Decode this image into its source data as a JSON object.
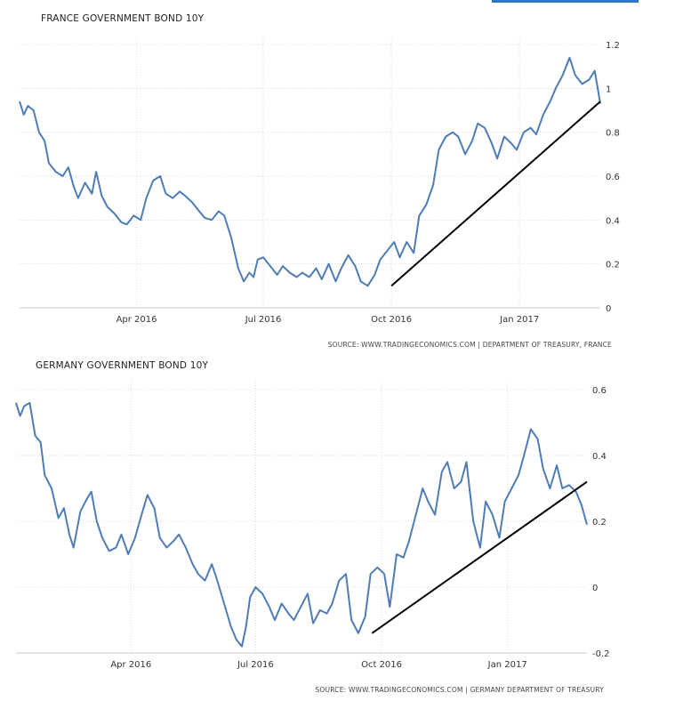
{
  "chart_data": [
    {
      "type": "line",
      "title": "FRANCE GOVERNMENT BOND 10Y",
      "source": "SOURCE: WWW.TRADINGECONOMICS.COM | DEPARTMENT OF TREASURY, FRANCE",
      "ylim": [
        0,
        1.2
      ],
      "y_ticks": [
        "1.2",
        "1",
        "0.8",
        "0.6",
        "0.4",
        "0.2",
        "0"
      ],
      "x_ticks": [
        "Apr 2016",
        "Jul 2016",
        "Oct 2016",
        "Jan 2017"
      ],
      "x_range": [
        "2016-01-08",
        "2017-02-28"
      ],
      "grid": true,
      "line_color": "#4e7cb5",
      "series": [
        {
          "x": [
            "2016-01-08",
            "2016-01-11",
            "2016-01-14",
            "2016-01-18",
            "2016-01-22",
            "2016-01-26",
            "2016-01-29",
            "2016-02-03",
            "2016-02-08",
            "2016-02-12",
            "2016-02-16",
            "2016-02-19",
            "2016-02-24",
            "2016-02-29",
            "2016-03-03",
            "2016-03-07",
            "2016-03-11",
            "2016-03-16",
            "2016-03-21",
            "2016-03-25",
            "2016-03-30",
            "2016-04-04",
            "2016-04-08",
            "2016-04-13",
            "2016-04-18",
            "2016-04-22",
            "2016-04-27",
            "2016-05-02",
            "2016-05-06",
            "2016-05-11",
            "2016-05-16",
            "2016-05-20",
            "2016-05-25",
            "2016-05-30",
            "2016-06-03",
            "2016-06-08",
            "2016-06-13",
            "2016-06-17",
            "2016-06-21",
            "2016-06-24",
            "2016-06-27",
            "2016-07-01",
            "2016-07-06",
            "2016-07-11",
            "2016-07-15",
            "2016-07-20",
            "2016-07-25",
            "2016-07-29",
            "2016-08-03",
            "2016-08-08",
            "2016-08-12",
            "2016-08-17",
            "2016-08-22",
            "2016-08-26",
            "2016-08-31",
            "2016-09-05",
            "2016-09-09",
            "2016-09-14",
            "2016-09-19",
            "2016-09-23",
            "2016-09-28",
            "2016-10-03",
            "2016-10-07",
            "2016-10-12",
            "2016-10-17",
            "2016-10-21",
            "2016-10-26",
            "2016-10-31",
            "2016-11-04",
            "2016-11-09",
            "2016-11-14",
            "2016-11-18",
            "2016-11-23",
            "2016-11-28",
            "2016-12-02",
            "2016-12-07",
            "2016-12-12",
            "2016-12-16",
            "2016-12-21",
            "2016-12-26",
            "2016-12-30",
            "2017-01-04",
            "2017-01-09",
            "2017-01-13",
            "2017-01-18",
            "2017-01-23",
            "2017-01-27",
            "2017-02-01",
            "2017-02-06",
            "2017-02-10",
            "2017-02-15",
            "2017-02-20",
            "2017-02-24",
            "2017-02-28"
          ],
          "values": [
            0.94,
            0.88,
            0.92,
            0.9,
            0.8,
            0.76,
            0.66,
            0.62,
            0.6,
            0.64,
            0.55,
            0.5,
            0.57,
            0.52,
            0.62,
            0.51,
            0.46,
            0.43,
            0.39,
            0.38,
            0.42,
            0.4,
            0.5,
            0.58,
            0.6,
            0.52,
            0.5,
            0.53,
            0.51,
            0.48,
            0.44,
            0.41,
            0.4,
            0.44,
            0.42,
            0.32,
            0.18,
            0.12,
            0.16,
            0.14,
            0.22,
            0.23,
            0.19,
            0.15,
            0.19,
            0.16,
            0.14,
            0.16,
            0.14,
            0.18,
            0.13,
            0.2,
            0.12,
            0.18,
            0.24,
            0.19,
            0.12,
            0.1,
            0.15,
            0.22,
            0.26,
            0.3,
            0.23,
            0.3,
            0.25,
            0.42,
            0.47,
            0.56,
            0.72,
            0.78,
            0.8,
            0.78,
            0.7,
            0.76,
            0.84,
            0.82,
            0.75,
            0.68,
            0.78,
            0.75,
            0.72,
            0.8,
            0.82,
            0.79,
            0.88,
            0.94,
            1.0,
            1.06,
            1.14,
            1.06,
            1.02,
            1.04,
            1.08,
            0.93
          ]
        }
      ],
      "trendline": {
        "from": [
          "2016-10-01",
          0.1
        ],
        "to": [
          "2017-02-28",
          0.94
        ]
      }
    },
    {
      "type": "line",
      "title": "GERMANY GOVERNMENT BOND 10Y",
      "source": "SOURCE: WWW.TRADINGECONOMICS.COM | GERMANY DEPARTMENT OF TREASURY",
      "ylim": [
        -0.2,
        0.6
      ],
      "y_ticks": [
        "0.6",
        "0.4",
        "0.2",
        "0",
        "-0.2"
      ],
      "x_ticks": [
        "Apr 2016",
        "Jul 2016",
        "Oct 2016",
        "Jan 2017"
      ],
      "x_range": [
        "2016-01-08",
        "2017-02-28"
      ],
      "grid": true,
      "line_color": "#4e7cb5",
      "series": [
        {
          "x": [
            "2016-01-08",
            "2016-01-11",
            "2016-01-14",
            "2016-01-18",
            "2016-01-22",
            "2016-01-26",
            "2016-01-29",
            "2016-02-03",
            "2016-02-08",
            "2016-02-12",
            "2016-02-16",
            "2016-02-19",
            "2016-02-24",
            "2016-02-29",
            "2016-03-03",
            "2016-03-07",
            "2016-03-11",
            "2016-03-16",
            "2016-03-21",
            "2016-03-25",
            "2016-03-30",
            "2016-04-04",
            "2016-04-08",
            "2016-04-13",
            "2016-04-18",
            "2016-04-22",
            "2016-04-27",
            "2016-05-02",
            "2016-05-06",
            "2016-05-11",
            "2016-05-16",
            "2016-05-20",
            "2016-05-25",
            "2016-05-30",
            "2016-06-03",
            "2016-06-08",
            "2016-06-13",
            "2016-06-17",
            "2016-06-21",
            "2016-06-24",
            "2016-06-27",
            "2016-07-01",
            "2016-07-06",
            "2016-07-11",
            "2016-07-15",
            "2016-07-20",
            "2016-07-25",
            "2016-07-29",
            "2016-08-03",
            "2016-08-08",
            "2016-08-12",
            "2016-08-17",
            "2016-08-22",
            "2016-08-26",
            "2016-08-31",
            "2016-09-05",
            "2016-09-09",
            "2016-09-14",
            "2016-09-19",
            "2016-09-23",
            "2016-09-28",
            "2016-10-03",
            "2016-10-07",
            "2016-10-12",
            "2016-10-17",
            "2016-10-21",
            "2016-10-26",
            "2016-10-31",
            "2016-11-04",
            "2016-11-09",
            "2016-11-14",
            "2016-11-18",
            "2016-11-23",
            "2016-11-28",
            "2016-12-02",
            "2016-12-07",
            "2016-12-12",
            "2016-12-16",
            "2016-12-21",
            "2016-12-26",
            "2016-12-30",
            "2017-01-04",
            "2017-01-09",
            "2017-01-13",
            "2017-01-18",
            "2017-01-23",
            "2017-01-27",
            "2017-02-01",
            "2017-02-06",
            "2017-02-10",
            "2017-02-15",
            "2017-02-20",
            "2017-02-24",
            "2017-02-28"
          ],
          "values": [
            0.56,
            0.52,
            0.55,
            0.56,
            0.46,
            0.44,
            0.34,
            0.3,
            0.21,
            0.24,
            0.16,
            0.12,
            0.23,
            0.27,
            0.29,
            0.2,
            0.15,
            0.11,
            0.12,
            0.16,
            0.1,
            0.15,
            0.21,
            0.28,
            0.24,
            0.15,
            0.12,
            0.14,
            0.16,
            0.12,
            0.07,
            0.04,
            0.02,
            0.07,
            0.02,
            -0.05,
            -0.12,
            -0.16,
            -0.18,
            -0.12,
            -0.03,
            0.0,
            -0.02,
            -0.06,
            -0.1,
            -0.05,
            -0.08,
            -0.1,
            -0.06,
            -0.02,
            -0.11,
            -0.07,
            -0.08,
            -0.05,
            0.02,
            0.04,
            -0.1,
            -0.14,
            -0.09,
            0.04,
            0.06,
            0.04,
            -0.06,
            0.1,
            0.09,
            0.14,
            0.22,
            0.3,
            0.26,
            0.22,
            0.35,
            0.38,
            0.3,
            0.32,
            0.38,
            0.2,
            0.12,
            0.26,
            0.22,
            0.15,
            0.26,
            0.3,
            0.34,
            0.4,
            0.48,
            0.45,
            0.36,
            0.3,
            0.37,
            0.3,
            0.31,
            0.29,
            0.25,
            0.19
          ]
        }
      ],
      "trendline": {
        "from": [
          "2016-09-24",
          -0.14
        ],
        "to": [
          "2017-02-28",
          0.32
        ]
      }
    }
  ]
}
